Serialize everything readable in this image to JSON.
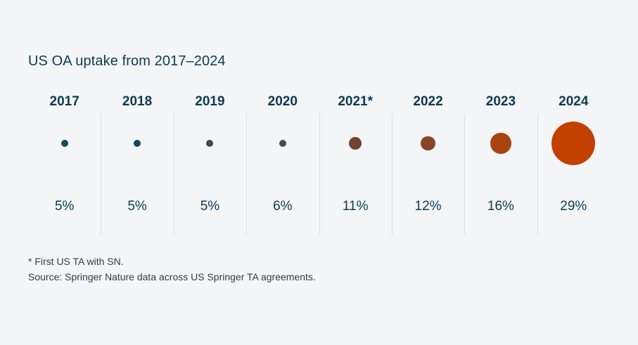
{
  "chart_data": {
    "type": "bubble",
    "title": "US OA uptake from 2017–2024",
    "categories": [
      "2017",
      "2018",
      "2019",
      "2020",
      "2021*",
      "2022",
      "2023",
      "2024"
    ],
    "values": [
      5,
      5,
      5,
      6,
      11,
      12,
      16,
      29
    ],
    "value_labels": [
      "5%",
      "5%",
      "5%",
      "6%",
      "11%",
      "12%",
      "16%",
      "29%"
    ],
    "unit": "%",
    "colors": [
      "#124a62",
      "#124a62",
      "#3b4a4e",
      "#4a4a4a",
      "#6d4530",
      "#8a4526",
      "#a8440f",
      "#c24000"
    ],
    "grid": false,
    "legend": "none"
  },
  "footnotes": {
    "note": "* First US TA with SN.",
    "source": "Source: Springer Nature data across US Springer TA agreements."
  }
}
